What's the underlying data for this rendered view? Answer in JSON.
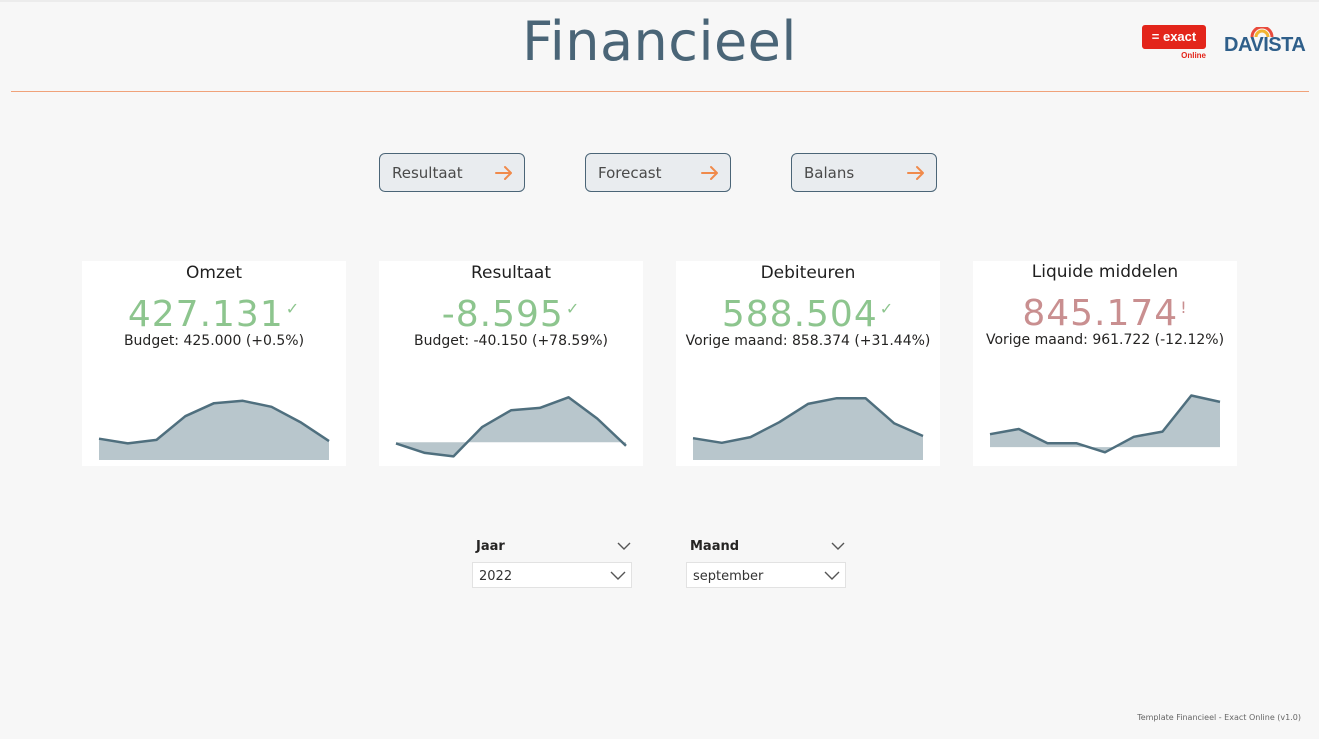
{
  "header": {
    "title": "Financieel",
    "exact_logo": "= exact",
    "exact_sub": "Online",
    "davista_logo": "DAVISTA"
  },
  "nav": [
    {
      "label": "Resultaat",
      "icon": "arrow-right-icon"
    },
    {
      "label": "Forecast",
      "icon": "arrow-right-icon"
    },
    {
      "label": "Balans",
      "icon": "arrow-right-icon"
    }
  ],
  "cards": [
    {
      "title": "Omzet",
      "value": "427.131",
      "mark": "✓",
      "status": "good",
      "sub": "Budget: 425.000 (+0.5%)"
    },
    {
      "title": "Resultaat",
      "value": "-8.595",
      "mark": "✓",
      "status": "good",
      "sub": "Budget: -40.150 (+78.59%)"
    },
    {
      "title": "Debiteuren",
      "value": "588.504",
      "mark": "✓",
      "status": "good",
      "sub": "Vorige maand: 858.374 (+31.44%)"
    },
    {
      "title": "Liquide middelen",
      "value": "845.174",
      "mark": "!",
      "status": "bad",
      "sub": "Vorige maand: 961.722 (-12.12%)"
    }
  ],
  "sparklines": [
    {
      "series": [
        18,
        14,
        17,
        37,
        48,
        50,
        45,
        32,
        16
      ],
      "range": [
        0,
        60
      ]
    },
    {
      "series": [
        -1,
        -9,
        -12,
        13,
        27,
        29,
        38,
        20,
        -3
      ],
      "range": [
        -15,
        45
      ]
    },
    {
      "series": [
        19,
        15,
        20,
        33,
        49,
        54,
        54,
        32,
        21
      ],
      "range": [
        0,
        62
      ]
    },
    {
      "series": [
        10,
        14,
        3,
        3,
        -4,
        8,
        12,
        40,
        35
      ],
      "range": [
        -10,
        45
      ]
    }
  ],
  "colors": {
    "good": "#8dc58e",
    "bad": "#c98f90",
    "spark_line": "#4f6f7e",
    "spark_fill": "#b8c6cc",
    "accent": "#f08a4b"
  },
  "filters": {
    "year": {
      "label": "Jaar",
      "value": "2022"
    },
    "month": {
      "label": "Maand",
      "value": "september"
    }
  },
  "footer": "Template Financieel - Exact Online (v1.0)"
}
